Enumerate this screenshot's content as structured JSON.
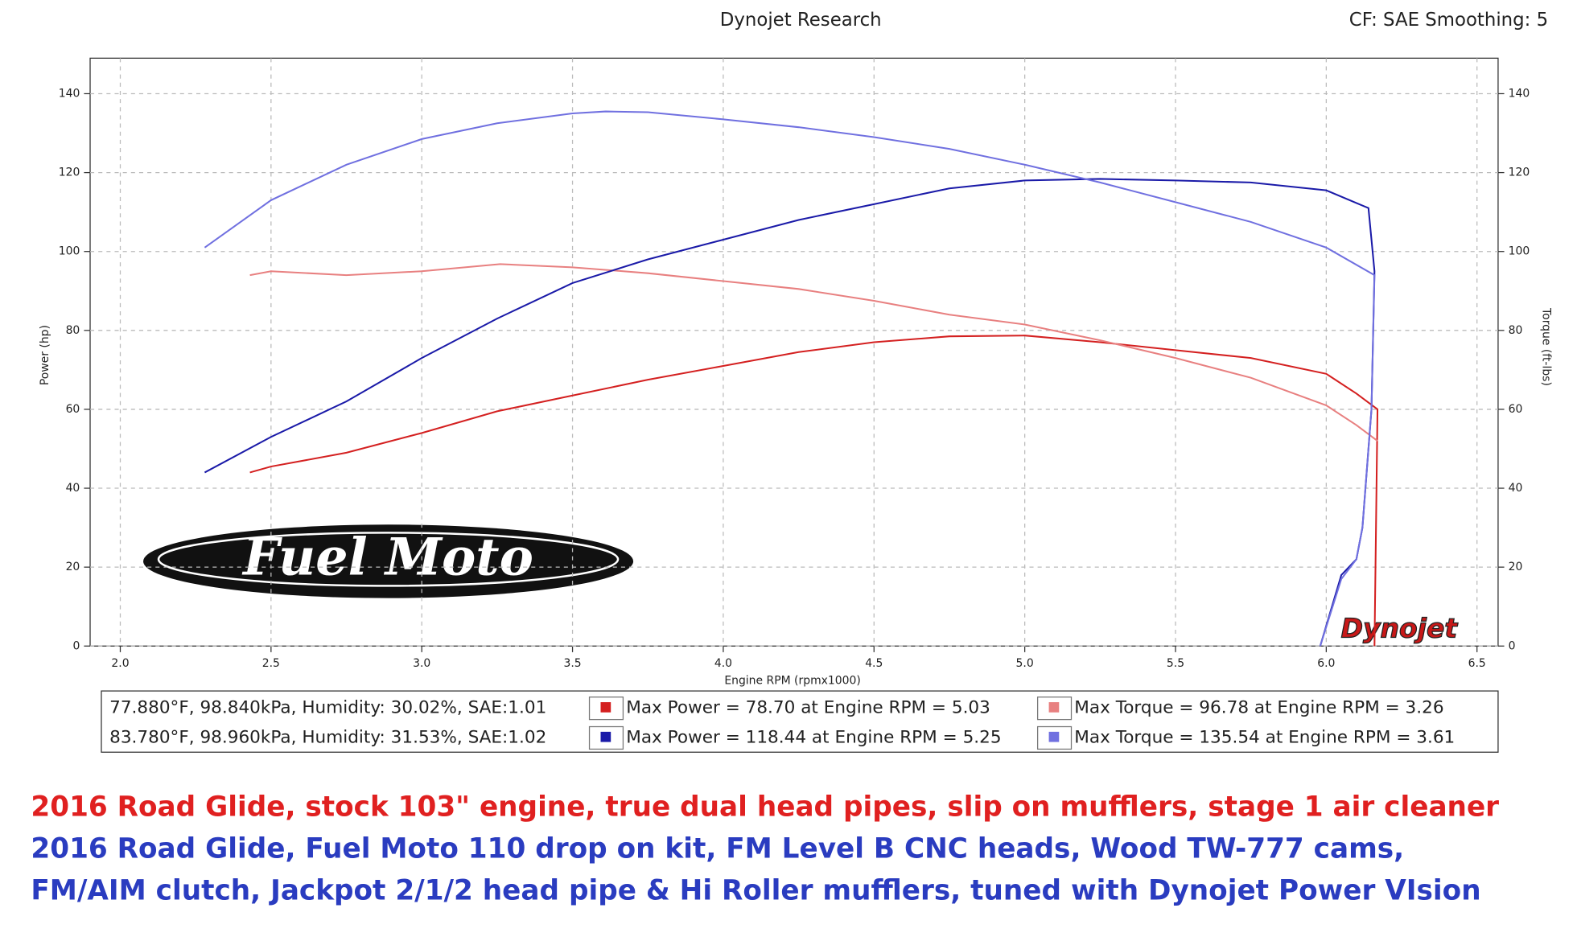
{
  "chart_data": {
    "type": "line",
    "title": "Dynojet Research",
    "subtitle": "CF: SAE Smoothing: 5",
    "x_label": "Engine RPM (rpmx1000)",
    "y_label": "Power (hp)",
    "y2_label": "Torque (ft-lbs)",
    "xlim": [
      1.9,
      6.57
    ],
    "ylim": [
      0,
      149
    ],
    "y2lim": [
      0,
      149
    ],
    "xticks": [
      {
        "value": 2,
        "label": "2.0"
      },
      {
        "value": 2.5,
        "label": "2.5"
      },
      {
        "value": 3,
        "label": "3.0"
      },
      {
        "value": 3.5,
        "label": "3.5"
      },
      {
        "value": 4,
        "label": "4.0"
      },
      {
        "value": 4.5,
        "label": "4.5"
      },
      {
        "value": 5,
        "label": "5.0"
      },
      {
        "value": 5.5,
        "label": "5.5"
      },
      {
        "value": 6,
        "label": "6.0"
      },
      {
        "value": 6.5,
        "label": "6.5"
      }
    ],
    "yticks": [
      0,
      20,
      40,
      60,
      80,
      100,
      120,
      140
    ],
    "y2ticks": [
      0,
      20,
      40,
      60,
      80,
      100,
      120,
      140
    ],
    "grid": true,
    "run_info": [
      "77.880°F, 98.840kPa, Humidity: 30.02%, SAE:1.01",
      "83.780°F, 98.960kPa, Humidity: 31.53%, SAE:1.02"
    ],
    "series": [
      {
        "name": "Max Power = 78.70 at Engine RPM = 5.03",
        "color": "#d42020",
        "axis": "y",
        "x": [
          2.43,
          2.5,
          2.75,
          3.0,
          3.25,
          3.5,
          3.75,
          4.0,
          4.25,
          4.5,
          4.75,
          5.0,
          5.25,
          5.5,
          5.75,
          6.0,
          6.1,
          6.17,
          6.16
        ],
        "values": [
          44,
          45.5,
          49,
          54,
          59.5,
          63.5,
          67.5,
          71,
          74.5,
          77,
          78.5,
          78.7,
          77,
          75,
          73,
          69,
          64,
          60,
          0
        ]
      },
      {
        "name": "Max Torque = 96.78 at Engine RPM = 3.26",
        "color": "#e88080",
        "axis": "y2",
        "x": [
          2.43,
          2.5,
          2.75,
          3.0,
          3.26,
          3.5,
          3.75,
          4.0,
          4.25,
          4.5,
          4.75,
          5.0,
          5.25,
          5.5,
          5.75,
          6.0,
          6.1,
          6.17
        ],
        "values": [
          94,
          95,
          94,
          95,
          96.8,
          96,
          94.5,
          92.5,
          90.5,
          87.5,
          84,
          81.5,
          77.5,
          73,
          68,
          61,
          56,
          52
        ]
      },
      {
        "name": "Max Power = 118.44 at Engine RPM = 5.25",
        "color": "#1a1aa8",
        "axis": "y",
        "x": [
          2.28,
          2.5,
          2.75,
          3.0,
          3.25,
          3.5,
          3.75,
          4.0,
          4.25,
          4.5,
          4.75,
          5.0,
          5.25,
          5.5,
          5.75,
          6.0,
          6.14,
          6.16,
          6.15,
          6.12,
          6.1,
          6.05,
          5.98
        ],
        "values": [
          44,
          53,
          62,
          73,
          83,
          92,
          98,
          103,
          108,
          112,
          116,
          118,
          118.4,
          118,
          117.5,
          115.5,
          111,
          95,
          60,
          30,
          22,
          18,
          0
        ]
      },
      {
        "name": "Max Torque = 135.54 at Engine RPM = 3.61",
        "color": "#7070e0",
        "axis": "y2",
        "x": [
          2.28,
          2.5,
          2.75,
          3.0,
          3.25,
          3.5,
          3.61,
          3.75,
          4.0,
          4.25,
          4.5,
          4.75,
          5.0,
          5.25,
          5.5,
          5.75,
          6.0,
          6.16,
          6.15,
          6.12,
          6.1,
          6.05,
          5.98
        ],
        "values": [
          101,
          113,
          122,
          128.5,
          132.5,
          135,
          135.5,
          135.3,
          133.5,
          131.5,
          129,
          126,
          122,
          117.5,
          112.5,
          107.5,
          101,
          94,
          60,
          30,
          22,
          17,
          0
        ]
      }
    ]
  },
  "logos": [
    "Fuel Moto",
    "Dynojet"
  ],
  "captions": [
    {
      "text": "2016 Road Glide, stock 103\" engine, true dual head pipes, slip on mufflers, stage 1 air cleaner",
      "color": "#e02020"
    },
    {
      "text": "2016 Road Glide, Fuel Moto 110 drop on kit, FM Level B CNC heads, Wood TW-777 cams,",
      "color": "#2a3cc0"
    },
    {
      "text": "FM/AIM clutch, Jackpot 2/1/2 head pipe & Hi Roller mufflers, tuned with Dynojet Power VIsion",
      "color": "#2a3cc0"
    }
  ]
}
